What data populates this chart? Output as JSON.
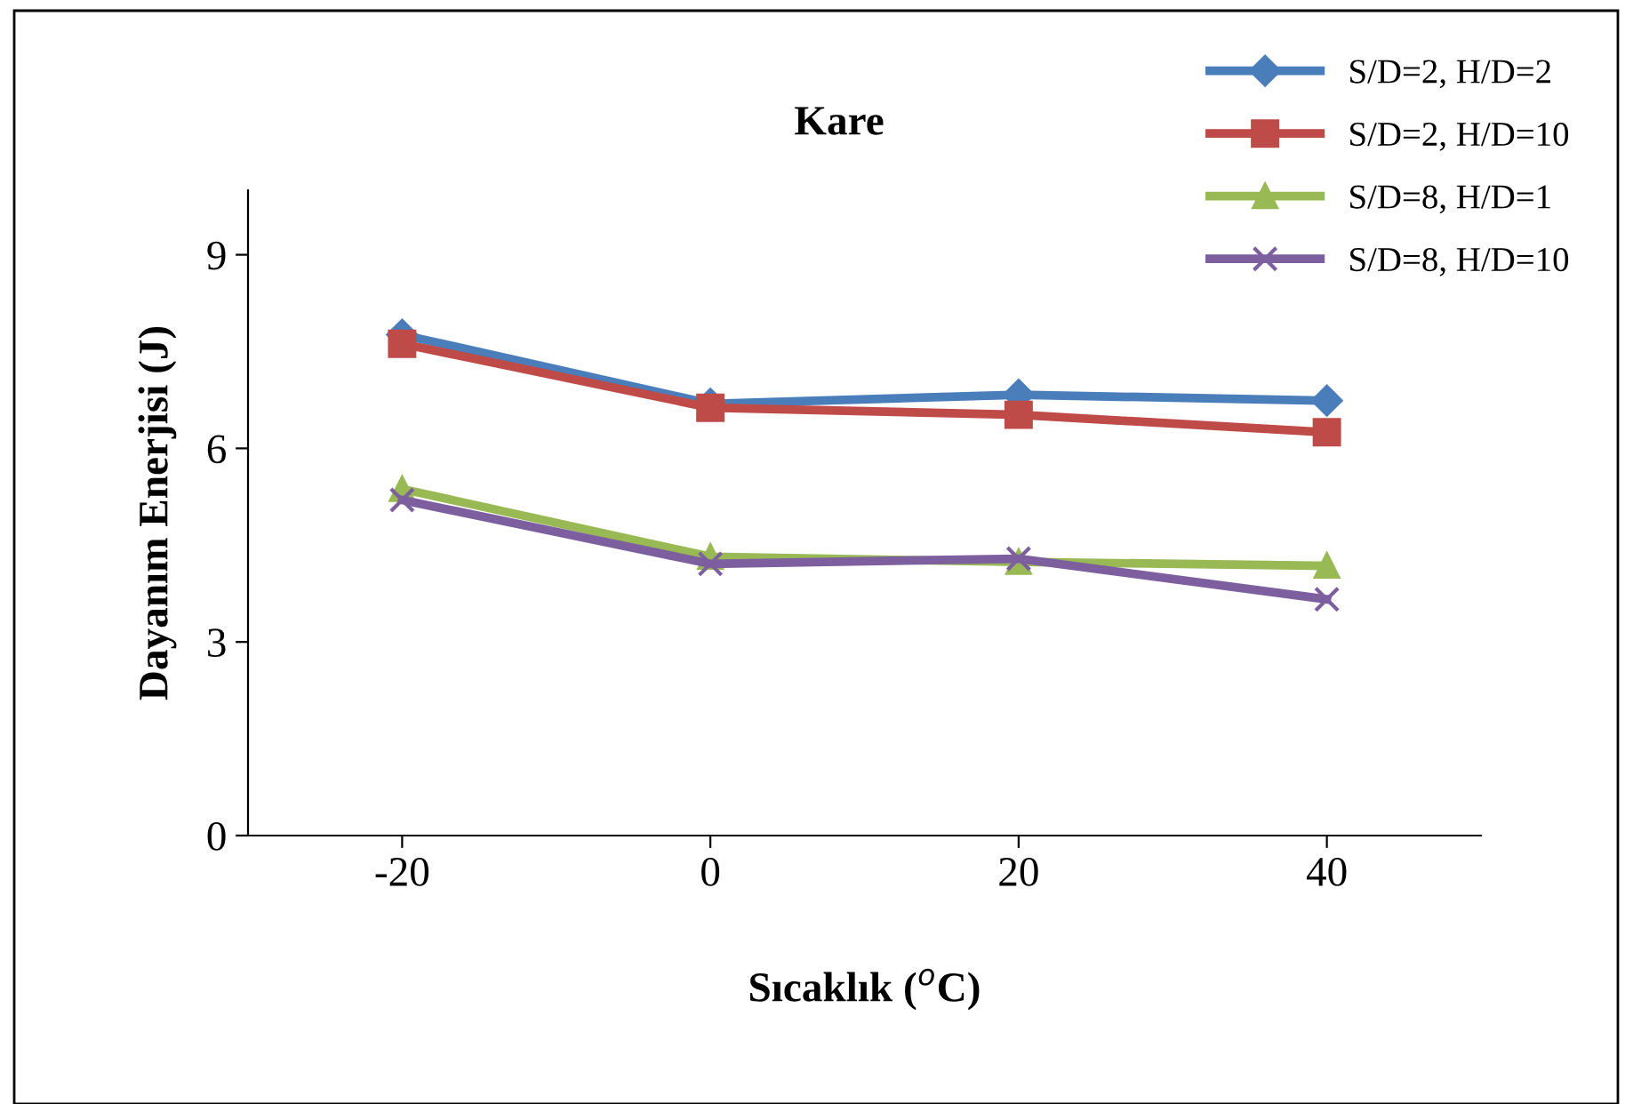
{
  "chart_data": {
    "type": "line",
    "title": "Kare",
    "xlabel": "Sıcaklık ($^{o}$C)",
    "ylabel": "Dayanım Enerjisi (J)",
    "x": [
      -20,
      0,
      20,
      40
    ],
    "xlim": [
      -30,
      50
    ],
    "xticks": [
      -20,
      0,
      20,
      40
    ],
    "ylim": [
      0,
      10
    ],
    "yticks": [
      0,
      3,
      6,
      9
    ],
    "grid": false,
    "legend": "top right",
    "line_style": "solid",
    "series": [
      {
        "name": "S/D=2, H/D=2",
        "color": "#4a7ebb",
        "marker": "diamond",
        "values": [
          7.76,
          6.69,
          6.83,
          6.74
        ]
      },
      {
        "name": "S/D=2, H/D=10",
        "color": "#be4b48",
        "marker": "square",
        "values": [
          7.62,
          6.63,
          6.52,
          6.25
        ]
      },
      {
        "name": "S/D=8, H/D=1",
        "color": "#98b954",
        "marker": "triangle",
        "values": [
          5.37,
          4.32,
          4.24,
          4.18
        ]
      },
      {
        "name": "S/D=8, H/D=10",
        "color": "#7d5fa0",
        "marker": "cross",
        "values": [
          5.2,
          4.21,
          4.29,
          3.66
        ]
      }
    ]
  }
}
